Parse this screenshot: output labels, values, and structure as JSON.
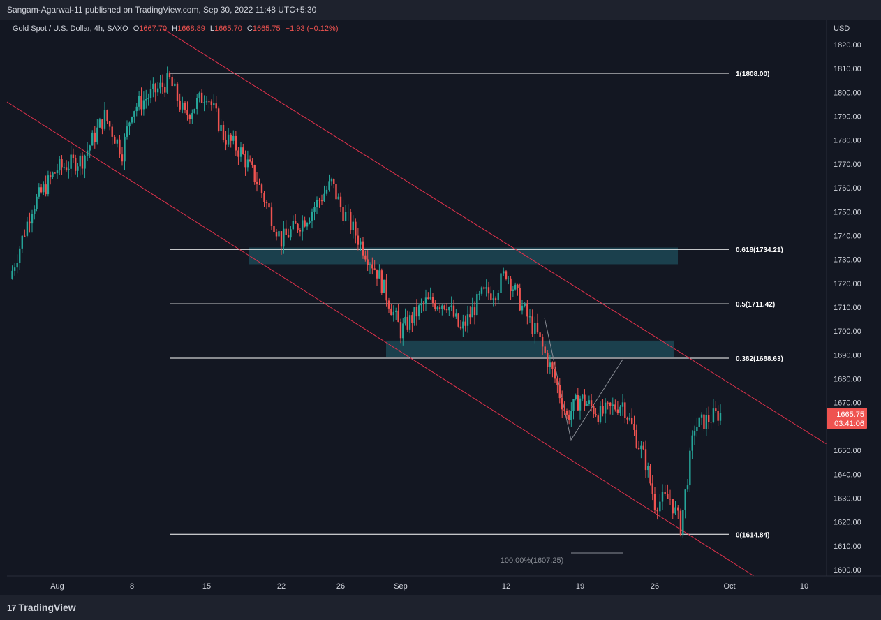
{
  "header": {
    "publisher": "Sangam-Agarwal-11 published on TradingView.com, Sep 30, 2022 11:48 UTC+5:30"
  },
  "legend": {
    "symbol": "Gold Spot / U.S. Dollar, 4h, SAXO",
    "o_label": "O",
    "o_value": "1667.70",
    "h_label": "H",
    "h_value": "1668.89",
    "l_label": "L",
    "l_value": "1665.70",
    "c_label": "C",
    "c_value": "1665.75",
    "change": "−1.93 (−0.12%)"
  },
  "price_scale": {
    "currency": "USD",
    "ticks": [
      "1820.00",
      "1810.00",
      "1800.00",
      "1790.00",
      "1780.00",
      "1770.00",
      "1760.00",
      "1750.00",
      "1740.00",
      "1730.00",
      "1720.00",
      "1710.00",
      "1700.00",
      "1690.00",
      "1680.00",
      "1670.00",
      "1660.00",
      "1650.00",
      "1640.00",
      "1630.00",
      "1620.00",
      "1610.00",
      "1600.00"
    ],
    "last_price": "1665.75",
    "countdown": "03:41:06"
  },
  "time_scale": {
    "ticks": [
      "Aug",
      "8",
      "15",
      "22",
      "26",
      "Sep",
      "12",
      "19",
      "26",
      "Oct",
      "10"
    ]
  },
  "fib_levels": [
    {
      "label": "1(1808.00)",
      "price": 1808.0
    },
    {
      "label": "0.618(1734.21)",
      "price": 1734.21
    },
    {
      "label": "0.5(1711.42)",
      "price": 1711.42
    },
    {
      "label": "0.382(1688.63)",
      "price": 1688.63
    },
    {
      "label": "0(1614.84)",
      "price": 1614.84
    }
  ],
  "measure_label": "100.00%(1607.25)",
  "zones": [
    {
      "name": "resistance-zone",
      "top": 1735,
      "bottom": 1728
    },
    {
      "name": "support-zone",
      "top": 1696,
      "bottom": 1689
    }
  ],
  "footer": {
    "brand": "TradingView"
  },
  "colors": {
    "background": "#131722",
    "up": "#26a69a",
    "down": "#ef5350",
    "channel": "#e0314b",
    "zone": "#1f4f5c",
    "fib": "#ffffff"
  },
  "chart_data": {
    "type": "candlestick",
    "title": "Gold Spot / U.S. Dollar, 4h, SAXO",
    "ylim": [
      1597,
      1830
    ],
    "y_unit": "USD",
    "price_path": [
      {
        "date": "Jul 28",
        "price": 1722
      },
      {
        "date": "Jul 29",
        "price": 1752
      },
      {
        "date": "Aug 1",
        "price": 1768
      },
      {
        "date": "Aug 3",
        "price": 1772
      },
      {
        "date": "Aug 4",
        "price": 1790
      },
      {
        "date": "Aug 5",
        "price": 1775
      },
      {
        "date": "Aug 8",
        "price": 1793
      },
      {
        "date": "Aug 10",
        "price": 1805
      },
      {
        "date": "Aug 12",
        "price": 1790
      },
      {
        "date": "Aug 15",
        "price": 1800
      },
      {
        "date": "Aug 16",
        "price": 1782
      },
      {
        "date": "Aug 18",
        "price": 1775
      },
      {
        "date": "Aug 19",
        "price": 1763
      },
      {
        "date": "Aug 22",
        "price": 1738
      },
      {
        "date": "Aug 23",
        "price": 1748
      },
      {
        "date": "Aug 25",
        "price": 1762
      },
      {
        "date": "Aug 26",
        "price": 1752
      },
      {
        "date": "Aug 29",
        "price": 1735
      },
      {
        "date": "Aug 30",
        "price": 1725
      },
      {
        "date": "Sep 1",
        "price": 1700
      },
      {
        "date": "Sep 2",
        "price": 1712
      },
      {
        "date": "Sep 5",
        "price": 1712
      },
      {
        "date": "Sep 6",
        "price": 1700
      },
      {
        "date": "Sep 8",
        "price": 1715
      },
      {
        "date": "Sep 9",
        "price": 1717
      },
      {
        "date": "Sep 12",
        "price": 1725
      },
      {
        "date": "Sep 13",
        "price": 1710
      },
      {
        "date": "Sep 14",
        "price": 1698
      },
      {
        "date": "Sep 15",
        "price": 1680
      },
      {
        "date": "Sep 16",
        "price": 1664
      },
      {
        "date": "Sep 19",
        "price": 1672
      },
      {
        "date": "Sep 21",
        "price": 1665
      },
      {
        "date": "Sep 22",
        "price": 1670
      },
      {
        "date": "Sep 23",
        "price": 1645
      },
      {
        "date": "Sep 26",
        "price": 1628
      },
      {
        "date": "Sep 27",
        "price": 1630
      },
      {
        "date": "Sep 28",
        "price": 1618
      },
      {
        "date": "Sep 29",
        "price": 1660
      },
      {
        "date": "Sep 30",
        "price": 1665.75
      }
    ]
  }
}
